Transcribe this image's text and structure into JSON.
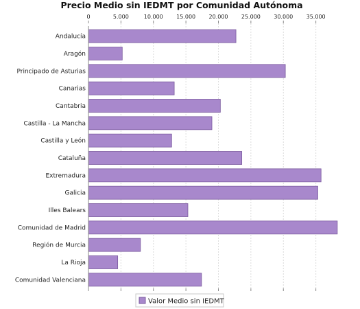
{
  "chart_data": {
    "type": "bar",
    "orientation": "horizontal",
    "title": "Precio Medio sin IEDMT por Comunidad Autónoma",
    "categories": [
      "Andalucía",
      "Aragón",
      "Principado de Asturias",
      "Canarias",
      "Cantabria",
      "Castilla - La Mancha",
      "Castilla y León",
      "Cataluña",
      "Extremadura",
      "Galicia",
      "Illes Balears",
      "Comunidad de Madrid",
      "Región de Murcia",
      "La Rioja",
      "Comunidad Valenciana"
    ],
    "series": [
      {
        "name": "Valor Medio sin IEDMT",
        "values": [
          22700,
          5200,
          30300,
          13200,
          20300,
          19000,
          12800,
          23600,
          35800,
          35300,
          15300,
          38300,
          8000,
          4500,
          17400
        ]
      }
    ],
    "xticks": [
      "0",
      "5.000",
      "10.000",
      "15.000",
      "20.000",
      "25.000",
      "30.000",
      "35.000"
    ],
    "xlim": [
      0,
      40000
    ],
    "grid": true,
    "legend_position": "bottom",
    "colors": {
      "bar_fill": "#a888cc",
      "bar_stroke": "#7a5a9e"
    }
  }
}
